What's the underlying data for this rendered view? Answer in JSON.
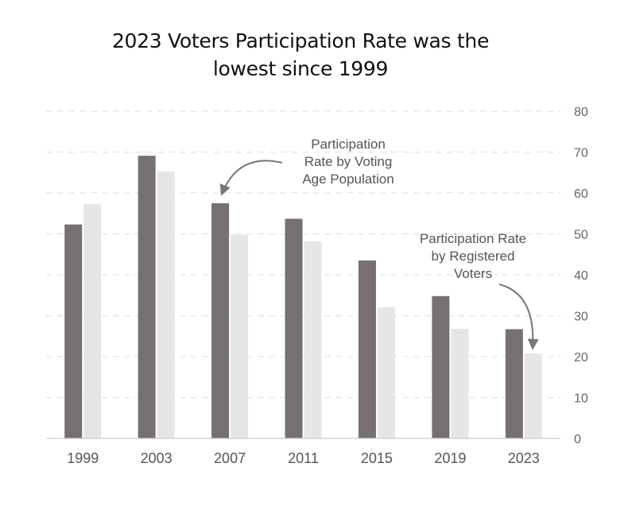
{
  "chart_data": {
    "type": "bar",
    "title_lines": [
      "2023 Voters Participation Rate was the",
      "lowest since 1999"
    ],
    "categories": [
      "1999",
      "2003",
      "2007",
      "2011",
      "2015",
      "2019",
      "2023"
    ],
    "series": [
      {
        "values": [
          52.3,
          69.1,
          57.5,
          53.7,
          43.5,
          34.8,
          26.7
        ],
        "color": "#767170"
      },
      {
        "values": [
          57.3,
          65.3,
          49.8,
          48.2,
          32.1,
          26.8,
          20.8
        ],
        "color": "#e6e6e6"
      }
    ],
    "ylim": [
      0,
      80
    ],
    "yticks": [
      "0",
      "10",
      "20",
      "30",
      "40",
      "50",
      "60",
      "70",
      "80"
    ],
    "y_axis_side": "right",
    "grid": true,
    "annotations": [
      {
        "lines": [
          "Participation",
          "Rate by Voting",
          "Age Population"
        ],
        "points_to": "2007"
      },
      {
        "lines": [
          "Participation Rate",
          "by Registered",
          "Voters"
        ],
        "points_to": "2023"
      }
    ]
  }
}
